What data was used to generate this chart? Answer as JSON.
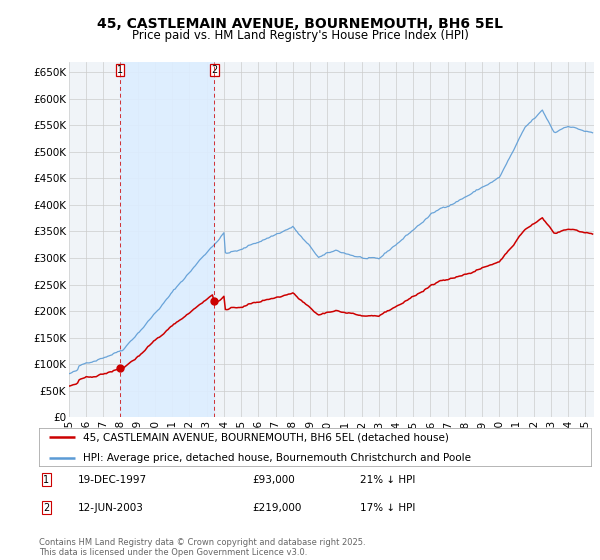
{
  "title": "45, CASTLEMAIN AVENUE, BOURNEMOUTH, BH6 5EL",
  "subtitle": "Price paid vs. HM Land Registry's House Price Index (HPI)",
  "background_color": "#ffffff",
  "plot_bg_color": "#f0f4f8",
  "grid_color": "#cccccc",
  "ylim": [
    0,
    670000
  ],
  "yticks": [
    0,
    50000,
    100000,
    150000,
    200000,
    250000,
    300000,
    350000,
    400000,
    450000,
    500000,
    550000,
    600000,
    650000
  ],
  "ytick_labels": [
    "£0",
    "£50K",
    "£100K",
    "£150K",
    "£200K",
    "£250K",
    "£300K",
    "£350K",
    "£400K",
    "£450K",
    "£500K",
    "£550K",
    "£600K",
    "£650K"
  ],
  "xlim_start": 1995.0,
  "xlim_end": 2025.5,
  "hpi_color": "#5b9bd5",
  "price_color": "#cc0000",
  "shade_color": "#ddeeff",
  "legend_label_price": "45, CASTLEMAIN AVENUE, BOURNEMOUTH, BH6 5EL (detached house)",
  "legend_label_hpi": "HPI: Average price, detached house, Bournemouth Christchurch and Poole",
  "purchase1_date": 1997.96,
  "purchase1_price": 93000,
  "purchase1_label": "1",
  "purchase1_hpi_pct": "21% ↓ HPI",
  "purchase1_text": "19-DEC-1997",
  "purchase2_date": 2003.45,
  "purchase2_price": 219000,
  "purchase2_label": "2",
  "purchase2_hpi_pct": "17% ↓ HPI",
  "purchase2_text": "12-JUN-2003",
  "footer": "Contains HM Land Registry data © Crown copyright and database right 2025.\nThis data is licensed under the Open Government Licence v3.0.",
  "title_fontsize": 10,
  "subtitle_fontsize": 8.5,
  "tick_fontsize": 7.5,
  "legend_fontsize": 7.5,
  "footer_fontsize": 6
}
